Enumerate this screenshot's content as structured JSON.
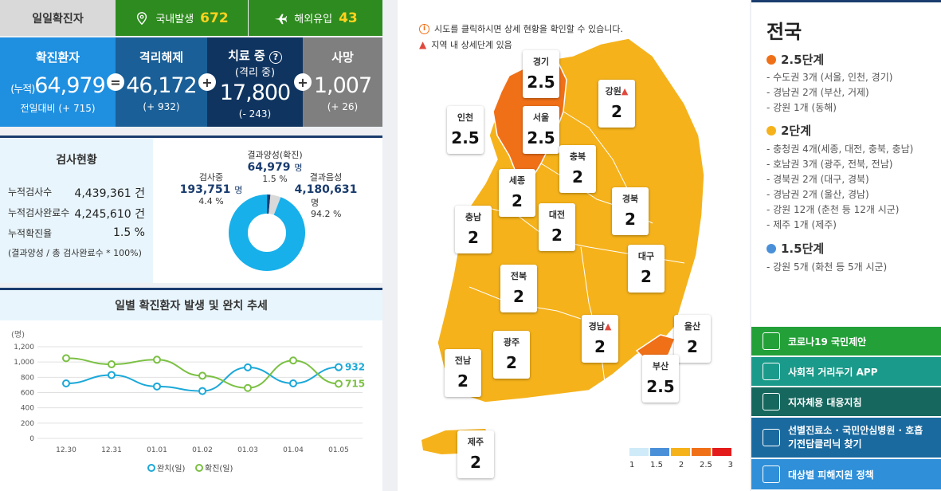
{
  "daily": {
    "title": "일일확진자",
    "domestic_label": "국내발생",
    "domestic_value": "672",
    "overseas_label": "해외유입",
    "overseas_value": "43"
  },
  "stats": {
    "confirmed": {
      "label": "확진환자",
      "prefix": "(누적)",
      "value": "64,979",
      "sub": "전일대비 (+ 715)"
    },
    "released": {
      "label": "격리해제",
      "value": "46,172",
      "sub": "(+ 932)"
    },
    "treating": {
      "label": "치료 중",
      "label2": "(격리 중)",
      "value": "17,800",
      "sub": "(- 243)"
    },
    "deaths": {
      "label": "사망",
      "value": "1,007",
      "sub": "(+ 26)"
    },
    "op_eq": "=",
    "op_plus": "+"
  },
  "tests": {
    "title": "검사현황",
    "rows": [
      {
        "label": "누적검사수",
        "value": "4,439,361 건"
      },
      {
        "label": "누적검사완료수",
        "value": "4,245,610 건"
      },
      {
        "label": "누적확진율",
        "value": "1.5 %"
      }
    ],
    "note": "(결과양성 / 총 검사완료수 * 100%)",
    "donut": {
      "positive_label": "결과양성(확진)",
      "positive_value": "64,979",
      "positive_unit": "명",
      "positive_pct": "1.5 %",
      "testing_label": "검사중",
      "testing_value": "193,751",
      "testing_unit": "명",
      "testing_pct": "4.4 %",
      "negative_label": "결과음성",
      "negative_value": "4,180,631",
      "negative_unit": "명",
      "negative_pct": "94.2 %",
      "fractions": {
        "positive": 0.015,
        "testing": 0.044,
        "negative": 0.942
      },
      "colors": {
        "positive": "#1a3c6e",
        "testing": "#d9d9d9",
        "negative": "#17b0ea"
      }
    }
  },
  "chart_data": {
    "type": "line",
    "title": "일별 확진환자 발생 및 완치 추세",
    "ylabel": "(명)",
    "categories": [
      "12.30",
      "12.31",
      "01.01",
      "01.02",
      "01.03",
      "01.04",
      "01.05"
    ],
    "yticks": [
      "0",
      "200",
      "400",
      "600",
      "800",
      "1,000",
      "1,200"
    ],
    "ylim": [
      0,
      1200
    ],
    "series": [
      {
        "name": "완치(일)",
        "values": [
          720,
          830,
          680,
          620,
          930,
          720,
          932
        ],
        "color": "#1ba8d8",
        "end_label": "932"
      },
      {
        "name": "확진(일)",
        "values": [
          1050,
          970,
          1030,
          820,
          660,
          1020,
          715
        ],
        "color": "#7bc043",
        "end_label": "715"
      }
    ],
    "legend": "bottom"
  },
  "map": {
    "notice1": "시도를 클릭하시면 상세 현황을 확인할 수 있습니다.",
    "notice2": "지역 내 상세단계 있음",
    "regions": [
      {
        "name": "경기",
        "level": "2.5"
      },
      {
        "name": "강원",
        "level": "2"
      },
      {
        "name": "인천",
        "level": "2.5"
      },
      {
        "name": "서울",
        "level": "2.5"
      },
      {
        "name": "충북",
        "level": "2"
      },
      {
        "name": "세종",
        "level": "2"
      },
      {
        "name": "경북",
        "level": "2"
      },
      {
        "name": "충남",
        "level": "2"
      },
      {
        "name": "대전",
        "level": "2"
      },
      {
        "name": "대구",
        "level": "2"
      },
      {
        "name": "전북",
        "level": "2"
      },
      {
        "name": "경남",
        "level": "2"
      },
      {
        "name": "울산",
        "level": "2"
      },
      {
        "name": "광주",
        "level": "2"
      },
      {
        "name": "전남",
        "level": "2"
      },
      {
        "name": "부산",
        "level": "2.5"
      },
      {
        "name": "제주",
        "level": "2"
      }
    ],
    "legend": [
      {
        "label": "1",
        "color": "#cfeaf8"
      },
      {
        "label": "1.5",
        "color": "#4a90d9"
      },
      {
        "label": "2",
        "color": "#f5b21b"
      },
      {
        "label": "2.5",
        "color": "#f07018"
      },
      {
        "label": "3",
        "color": "#e31b1b"
      }
    ]
  },
  "right": {
    "title": "전국",
    "levels": [
      {
        "label": "2.5단계",
        "color": "#f07018",
        "items": [
          "- 수도권 3개 (서울, 인천, 경기)",
          "- 경남권 2개 (부산, 거제)",
          "- 강원 1개 (동해)"
        ]
      },
      {
        "label": "2단계",
        "color": "#f5b21b",
        "items": [
          "- 충청권 4개(세종, 대전, 충북, 충남)",
          "- 호남권 3개 (광주, 전북, 전남)",
          "- 경북권 2개 (대구, 경북)",
          "- 경남권 2개 (울산, 경남)",
          "- 강원 12개 (춘천 등 12개 시군)",
          "- 제주 1개 (제주)"
        ]
      },
      {
        "label": "1.5단계",
        "color": "#4a90d9",
        "items": [
          "- 강원 5개 (화천 등 5개 시군)"
        ]
      }
    ],
    "buttons": [
      {
        "label": "코로나19 국민제안",
        "color": "#23a038"
      },
      {
        "label": "사회적 거리두기 APP",
        "color": "#1a9a8a"
      },
      {
        "label": "지자체용 대응지침",
        "color": "#16675e"
      },
      {
        "label": "선별진료소 · 국민안심병원 · 호흡기전담클리닉 찾기",
        "color": "#1a6aa0"
      },
      {
        "label": "대상별 피해지원 정책",
        "color": "#2f8fd8"
      }
    ]
  }
}
